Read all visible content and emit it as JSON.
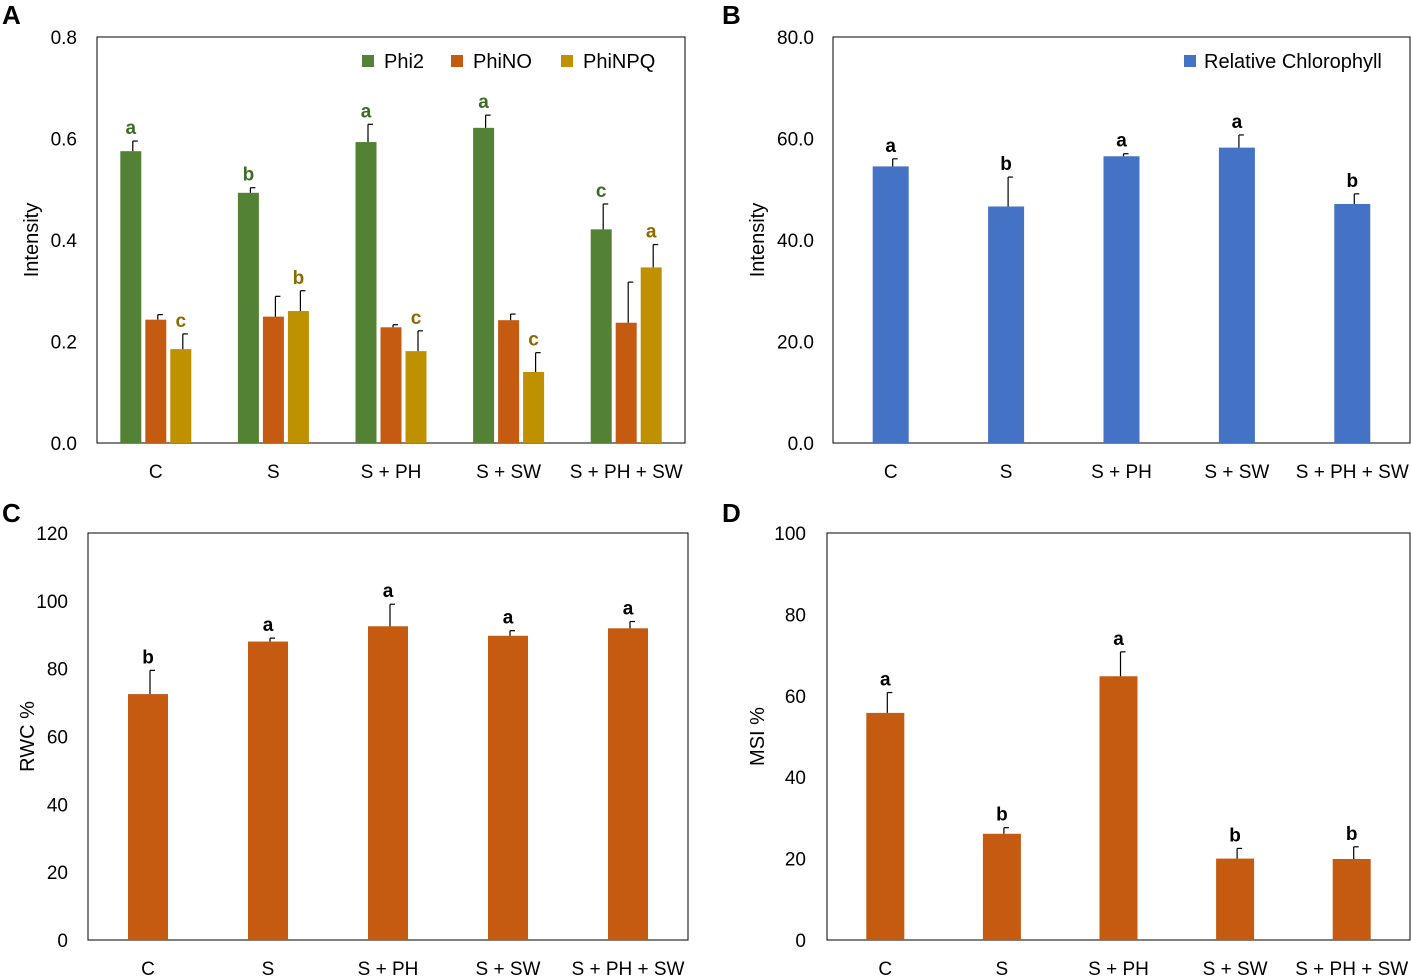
{
  "colors": {
    "phi2": "#548235",
    "phino": "#C55A11",
    "phinpq": "#BF9000",
    "phi2_label": "#3E6B24",
    "phinpq_label": "#8C6A00",
    "chlorophyll": "#4472C4",
    "orange": "#C55A11",
    "black": "#000000"
  },
  "chart_data": [
    {
      "panel": "A",
      "type": "bar",
      "title": "",
      "xlabel": "",
      "ylabel": "Intensity",
      "ylim": [
        0,
        0.8
      ],
      "yticks": [
        "0.0",
        "0.2",
        "0.4",
        "0.6",
        "0.8"
      ],
      "legend_position": "top-right",
      "categories": [
        "C",
        "S",
        "S + PH",
        "S + SW",
        "S + PH + SW"
      ],
      "series": [
        {
          "name": "Phi2",
          "color_key": "phi2",
          "label_color_key": "phi2_label",
          "values": [
            0.575,
            0.493,
            0.593,
            0.621,
            0.421
          ],
          "errors": [
            0.02,
            0.01,
            0.035,
            0.025,
            0.05
          ],
          "letters": [
            "a",
            "b",
            "a",
            "a",
            "c"
          ]
        },
        {
          "name": "PhiNO",
          "color_key": "phino",
          "label_color_key": "black",
          "values": [
            0.243,
            0.249,
            0.228,
            0.242,
            0.237
          ],
          "errors": [
            0.01,
            0.04,
            0.005,
            0.012,
            0.08
          ],
          "letters": [
            "",
            "",
            "",
            "",
            ""
          ]
        },
        {
          "name": "PhiNPQ",
          "color_key": "phinpq",
          "label_color_key": "phinpq_label",
          "values": [
            0.185,
            0.26,
            0.181,
            0.14,
            0.346
          ],
          "errors": [
            0.03,
            0.04,
            0.04,
            0.038,
            0.045
          ],
          "letters": [
            "c",
            "b",
            "c",
            "c",
            "a"
          ]
        }
      ]
    },
    {
      "panel": "B",
      "type": "bar",
      "title": "",
      "xlabel": "",
      "ylabel": "Intensity",
      "ylim": [
        0,
        80
      ],
      "yticks": [
        "0.0",
        "20.0",
        "40.0",
        "60.0",
        "80.0"
      ],
      "legend_position": "top-right",
      "categories": [
        "C",
        "S",
        "S + PH",
        "S + SW",
        "S + PH + SW"
      ],
      "series": [
        {
          "name": "Relative Chlorophyll",
          "color_key": "chlorophyll",
          "label_color_key": "black",
          "values": [
            54.5,
            46.6,
            56.5,
            58.2,
            47.1
          ],
          "errors": [
            1.5,
            5.8,
            0.5,
            2.5,
            2.0
          ],
          "letters": [
            "a",
            "b",
            "a",
            "a",
            "b"
          ]
        }
      ]
    },
    {
      "panel": "C",
      "type": "bar",
      "title": "",
      "xlabel": "",
      "ylabel": "RWC %",
      "ylim": [
        0,
        120
      ],
      "yticks": [
        "0",
        "20",
        "40",
        "60",
        "80",
        "100",
        "120"
      ],
      "legend_position": "none",
      "categories": [
        "C",
        "S",
        "S + PH",
        "S + SW",
        "S + PH + SW"
      ],
      "series": [
        {
          "name": "RWC %",
          "color_key": "orange",
          "label_color_key": "black",
          "values": [
            72.5,
            88,
            92.5,
            89.7,
            91.9
          ],
          "errors": [
            7,
            1,
            6.5,
            1.5,
            2
          ],
          "letters": [
            "b",
            "a",
            "a",
            "a",
            "a"
          ]
        }
      ]
    },
    {
      "panel": "D",
      "type": "bar",
      "title": "",
      "xlabel": "",
      "ylabel": "MSI %",
      "ylim": [
        0,
        100
      ],
      "yticks": [
        "0",
        "20",
        "40",
        "60",
        "80",
        "100"
      ],
      "legend_position": "none",
      "categories": [
        "C",
        "S",
        "S + PH",
        "S + SW",
        "S + PH + SW"
      ],
      "series": [
        {
          "name": "MSI %",
          "color_key": "orange",
          "label_color_key": "black",
          "values": [
            55.8,
            26.1,
            64.8,
            20,
            19.9
          ],
          "errors": [
            5,
            1.5,
            6,
            2.5,
            3
          ],
          "letters": [
            "a",
            "b",
            "a",
            "b",
            "b"
          ]
        }
      ]
    }
  ]
}
